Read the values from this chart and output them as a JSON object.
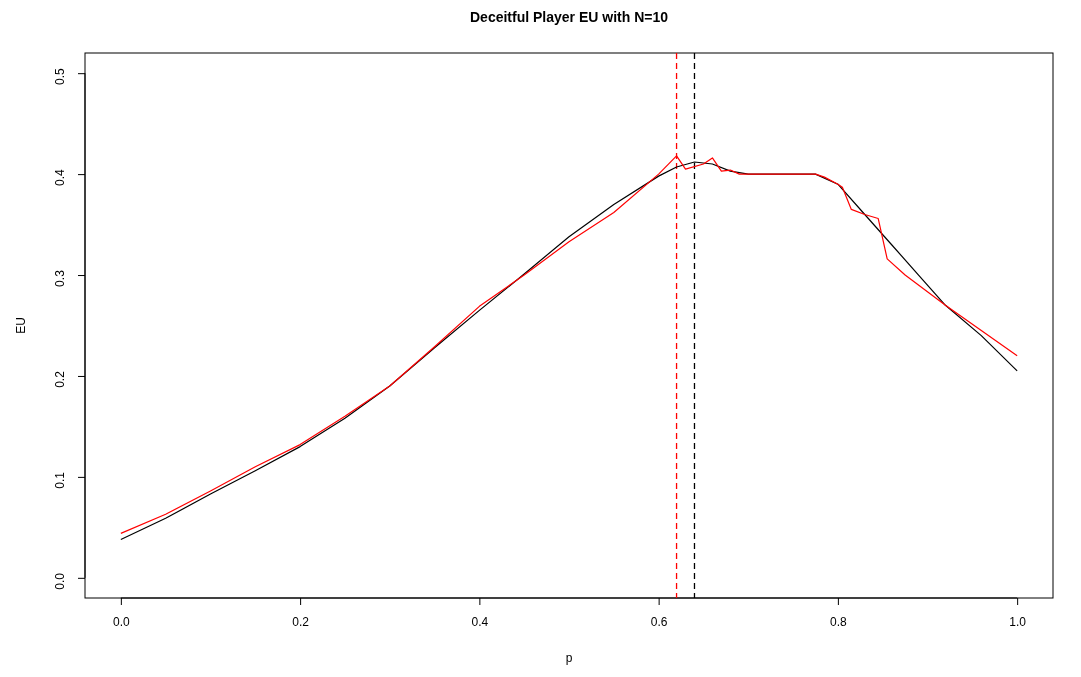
{
  "chart_data": {
    "type": "line",
    "title": "Deceitful Player EU with N=10",
    "xlabel": "p",
    "ylabel": "EU",
    "xlim": [
      -0.04,
      1.04
    ],
    "ylim": [
      -0.02,
      0.52
    ],
    "xticks": [
      {
        "value": 0,
        "label": "0.0"
      },
      0.2,
      0.4,
      0.6,
      0.8,
      {
        "value": 1,
        "label": "1.0"
      }
    ],
    "yticks": [
      {
        "value": 0,
        "label": "0.0"
      },
      0.1,
      0.2,
      0.3,
      0.4,
      0.5
    ],
    "grid": false,
    "marker": "none",
    "series": [
      {
        "color": "#000000",
        "x": [
          0,
          0.05,
          0.1,
          0.15,
          0.2,
          0.25,
          0.3,
          0.35,
          0.4,
          0.45,
          0.5,
          0.55,
          0.6,
          0.62,
          0.64,
          0.66,
          0.68,
          0.7,
          0.775,
          0.8,
          0.83,
          0.86,
          0.89,
          0.92,
          0.96,
          1
        ],
        "values": [
          0.038,
          0.059,
          0.083,
          0.106,
          0.13,
          0.158,
          0.19,
          0.228,
          0.265,
          0.301,
          0.338,
          0.37,
          0.398,
          0.407,
          0.412,
          0.41,
          0.403,
          0.4,
          0.4,
          0.39,
          0.36,
          0.33,
          0.3,
          0.27,
          0.24,
          0.205
        ]
      },
      {
        "color": "#ff0000",
        "x": [
          0,
          0.05,
          0.1,
          0.15,
          0.2,
          0.25,
          0.3,
          0.35,
          0.4,
          0.45,
          0.5,
          0.55,
          0.6,
          0.62,
          0.63,
          0.65,
          0.66,
          0.67,
          0.68,
          0.69,
          0.775,
          0.785,
          0.8,
          0.805,
          0.815,
          0.83,
          0.845,
          0.855,
          0.875,
          0.92,
          0.96,
          1
        ],
        "values": [
          0.044,
          0.063,
          0.086,
          0.11,
          0.132,
          0.16,
          0.19,
          0.229,
          0.269,
          0.3,
          0.333,
          0.362,
          0.4,
          0.418,
          0.405,
          0.41,
          0.416,
          0.403,
          0.404,
          0.4,
          0.4,
          0.397,
          0.39,
          0.387,
          0.365,
          0.36,
          0.356,
          0.316,
          0.3,
          0.27,
          0.245,
          0.22
        ]
      }
    ],
    "ref_lines": [
      {
        "axis": "x",
        "value": 0.62,
        "color": "#ff0000",
        "line_style": "dashed"
      },
      {
        "axis": "x",
        "value": 0.64,
        "color": "#000000",
        "line_style": "dashed"
      }
    ]
  }
}
